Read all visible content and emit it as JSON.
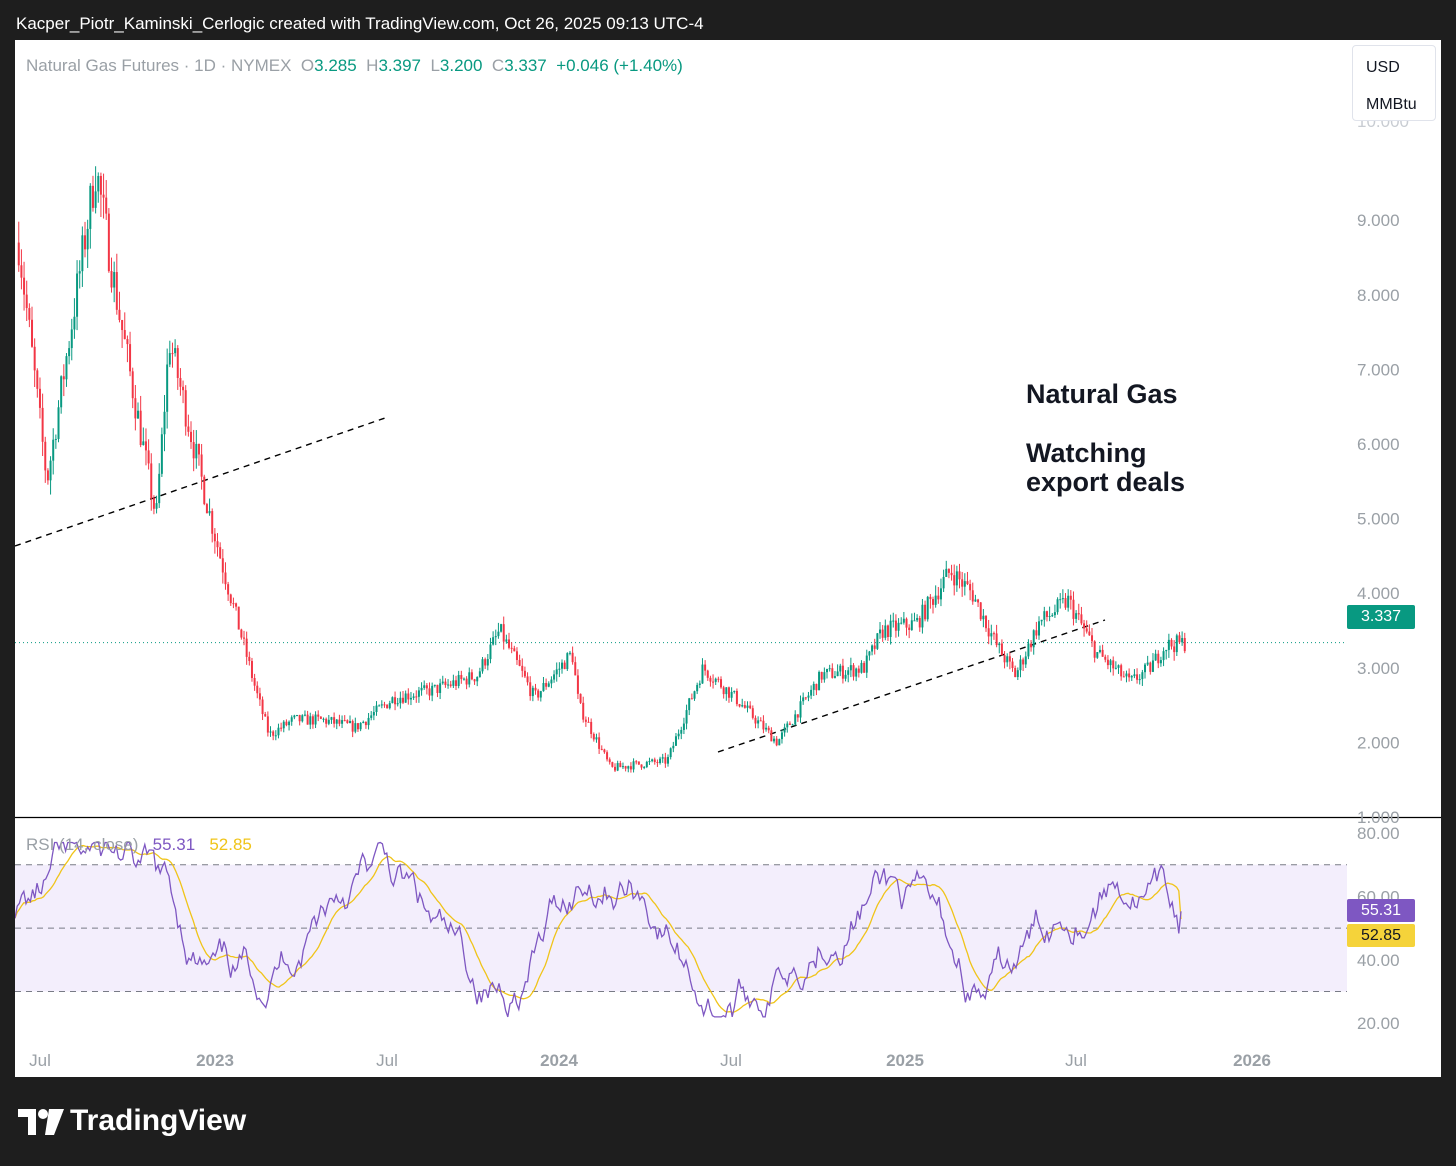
{
  "header": "Kacper_Piotr_Kaminski_Cerlogic created with TradingView.com, Oct 26, 2025 09:13 UTC-4",
  "legend": {
    "symbol": "Natural Gas Futures · 1D · NYMEX",
    "o_label": "O",
    "o_value": "3.285",
    "h_label": "H",
    "h_value": "3.397",
    "l_label": "L",
    "l_value": "3.200",
    "c_label": "C",
    "c_value": "3.337",
    "change": "+0.046 (+1.40%)"
  },
  "units": {
    "currency": "USD",
    "unit": "MMBtu"
  },
  "price_tag": "3.337",
  "rsi_legend": {
    "label": "RSI (14, close)",
    "rsi": "55.31",
    "ma": "52.85"
  },
  "rsi_tags": {
    "rsi": "55.31",
    "ma": "52.85"
  },
  "annotation": {
    "line1": "Natural Gas",
    "line2": "Watching",
    "line3": "export deals"
  },
  "footer": {
    "brand": "TradingView",
    "icon": "tradingview-logo-icon"
  },
  "colors": {
    "up": "#089981",
    "down": "#f23645",
    "rsi": "#7e57c2",
    "rsi_ma": "#f0c419",
    "band": "#f3eefc"
  },
  "chart_data": [
    {
      "type": "candlestick",
      "title": "",
      "price_axis": {
        "ticks": [
          "9.000",
          "8.000",
          "7.000",
          "6.000",
          "5.000",
          "4.000",
          "3.000",
          "2.000",
          "1.000"
        ],
        "ylim": [
          0.6,
          10.4
        ]
      },
      "time_axis": {
        "ticks": [
          "Jul",
          "2023",
          "Jul",
          "2024",
          "Jul",
          "2025",
          "Jul",
          "2026"
        ]
      },
      "last_price": 3.337,
      "series": [
        {
          "name": "",
          "x": [
            "2022-06-01",
            "2022-07-01",
            "2022-08-22",
            "2022-09-15",
            "2022-10-25",
            "2022-11-08",
            "2022-12-20",
            "2023-01-05",
            "2023-02-10",
            "2023-02-22",
            "2023-03-20",
            "2023-04-20",
            "2023-05-25",
            "2023-07-05",
            "2023-08-15",
            "2023-10-01",
            "2023-10-25",
            "2023-12-01",
            "2024-01-10",
            "2024-01-17",
            "2024-02-20",
            "2024-03-15",
            "2024-04-20",
            "2024-05-28",
            "2024-07-01",
            "2024-08-15",
            "2024-10-01",
            "2024-11-15",
            "2024-12-05",
            "2025-01-10",
            "2025-02-15",
            "2025-03-10",
            "2025-04-05",
            "2025-04-25",
            "2025-05-20",
            "2025-06-20",
            "2025-07-20",
            "2025-08-25",
            "2025-09-15",
            "2025-10-01",
            "2025-10-24"
          ],
          "close": [
            8.7,
            5.5,
            9.7,
            7.8,
            5.0,
            7.4,
            5.1,
            4.3,
            2.6,
            2.1,
            2.3,
            2.3,
            2.2,
            2.6,
            2.7,
            2.9,
            3.5,
            2.6,
            3.2,
            2.5,
            1.65,
            1.7,
            1.75,
            3.0,
            2.6,
            2.0,
            2.9,
            3.0,
            3.5,
            3.6,
            4.3,
            4.0,
            3.3,
            2.9,
            3.6,
            3.9,
            3.2,
            2.8,
            3.0,
            3.3,
            3.337
          ]
        }
      ]
    },
    {
      "type": "line",
      "title": "RSI (14, close)",
      "ylim": [
        15,
        82
      ],
      "y_ticks": [
        "80.00",
        "60.00",
        "40.00",
        "20.00"
      ],
      "bands": {
        "upper": 70,
        "middle": 50,
        "lower": 30
      },
      "series": [
        {
          "name": "RSI",
          "last": 55.31
        },
        {
          "name": "RSI MA",
          "last": 52.85
        }
      ]
    }
  ]
}
